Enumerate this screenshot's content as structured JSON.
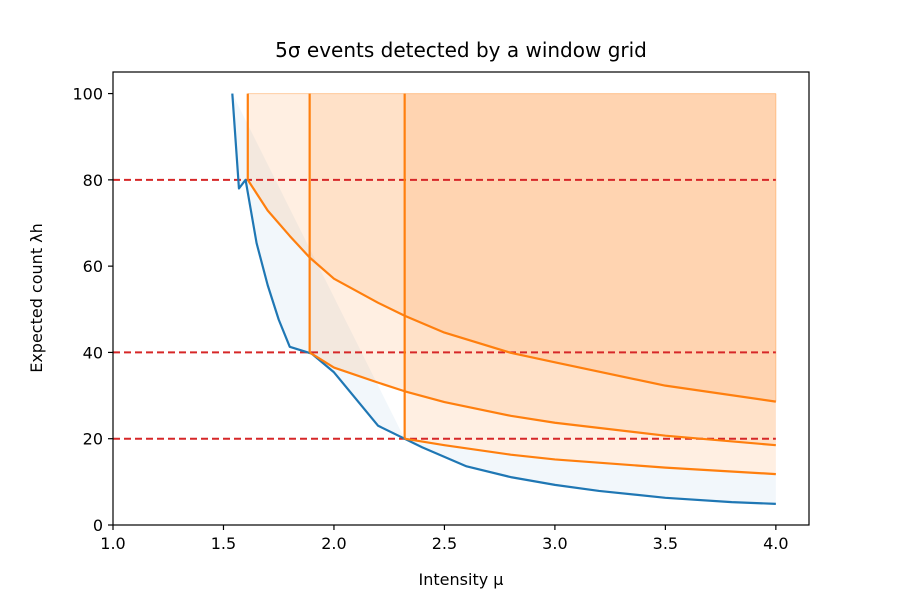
{
  "chart_data": {
    "type": "line",
    "title": "5σ events detected by a window grid",
    "xlabel": "Intensity μ",
    "ylabel": "Expected count λh",
    "xlim": [
      1.0,
      4.15
    ],
    "ylim": [
      0,
      105
    ],
    "xticks": [
      "1.0",
      "1.5",
      "2.0",
      "2.5",
      "3.0",
      "3.5",
      "4.0"
    ],
    "yticks": [
      "0",
      "20",
      "40",
      "60",
      "80",
      "100"
    ],
    "grid": false,
    "legend": "none",
    "series": [
      {
        "role": "threshold-curve",
        "color": "#1f77b4",
        "x": [
          1.54,
          1.55,
          1.57,
          1.6,
          1.65,
          1.7,
          1.75,
          1.8,
          1.9,
          2.0,
          2.2,
          2.4,
          2.6,
          2.8,
          3.0,
          3.2,
          3.5,
          3.8,
          4.0
        ],
        "y": [
          100,
          92.7,
          78.0,
          80.0,
          65.3,
          55.6,
          47.6,
          41.3,
          39.7,
          35.4,
          23.0,
          18.0,
          13.6,
          11.1,
          9.3,
          7.9,
          6.3,
          5.3,
          4.9
        ]
      },
      {
        "role": "grid-curve-h80",
        "color": "#ff7f0e",
        "x": [
          1.61,
          1.7,
          1.8,
          1.89,
          2.0,
          2.2,
          2.32,
          2.5,
          2.8,
          3.0,
          3.5,
          4.0
        ],
        "y": [
          80,
          72.9,
          67.0,
          62.0,
          57.1,
          51.5,
          48.5,
          44.6,
          39.9,
          37.7,
          32.3,
          28.6
        ]
      },
      {
        "role": "grid-curve-h40",
        "color": "#ff7f0e",
        "x": [
          1.89,
          2.0,
          2.2,
          2.32,
          2.5,
          2.8,
          3.0,
          3.5,
          4.0
        ],
        "y": [
          40,
          36.5,
          33.0,
          31.0,
          28.5,
          25.3,
          23.7,
          20.7,
          18.5
        ]
      },
      {
        "role": "grid-curve-h20",
        "color": "#ff7f0e",
        "x": [
          2.32,
          2.5,
          2.8,
          3.0,
          3.5,
          4.0
        ],
        "y": [
          20,
          18.5,
          16.3,
          15.2,
          13.3,
          11.8
        ]
      }
    ],
    "grid_windows": [
      {
        "h": 80,
        "mu_min": 1.61
      },
      {
        "h": 40,
        "mu_min": 1.89
      },
      {
        "h": 20,
        "mu_min": 2.32
      }
    ],
    "colors": {
      "threshold": "#1f77b4",
      "grid": "#ff7f0e",
      "hline": "#d62728"
    }
  }
}
